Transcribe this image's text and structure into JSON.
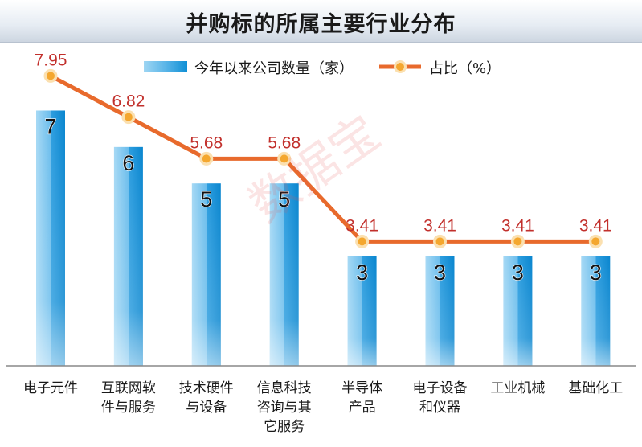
{
  "title": "并购标的所属主要行业分布",
  "watermark": "数据宝",
  "legend": {
    "bar_label": "今年以来公司数量（家）",
    "line_label": "占比（%）"
  },
  "colors": {
    "bar_light": "#a6d9f5",
    "bar_mid": "#5cb6ea",
    "bar_dark": "#0a86cf",
    "line": "#e86a2c",
    "marker_fill": "#f4a72f",
    "marker_ring": "#fbe0b0",
    "line_label": "#c2302c",
    "axis": "#888888"
  },
  "chart_data": {
    "type": "bar",
    "title": "并购标的所属主要行业分布",
    "categories": [
      [
        "电子元件"
      ],
      [
        "互联网软",
        "件与服务"
      ],
      [
        "技术硬件",
        "与设备"
      ],
      [
        "信息科技",
        "咨询与其",
        "它服务"
      ],
      [
        "半导体",
        "产品"
      ],
      [
        "电子设备",
        "和仪器"
      ],
      [
        "工业机械"
      ],
      [
        "基础化工"
      ]
    ],
    "series": [
      {
        "name": "今年以来公司数量（家）",
        "type": "bar",
        "values": [
          7,
          6,
          5,
          5,
          3,
          3,
          3,
          3
        ],
        "labels": [
          "7",
          "6",
          "5",
          "5",
          "3",
          "3",
          "3",
          "3"
        ]
      },
      {
        "name": "占比（%）",
        "type": "line",
        "values": [
          7.95,
          6.82,
          5.68,
          5.68,
          3.41,
          3.41,
          3.41,
          3.41
        ],
        "labels": [
          "7.95",
          "6.82",
          "5.68",
          "5.68",
          "3.41",
          "3.41",
          "3.41",
          "3.41"
        ]
      }
    ],
    "xlabel": "",
    "ylabel": "",
    "ylim": [
      0,
      9.7
    ],
    "grid": false,
    "legend_position": "top-center"
  }
}
